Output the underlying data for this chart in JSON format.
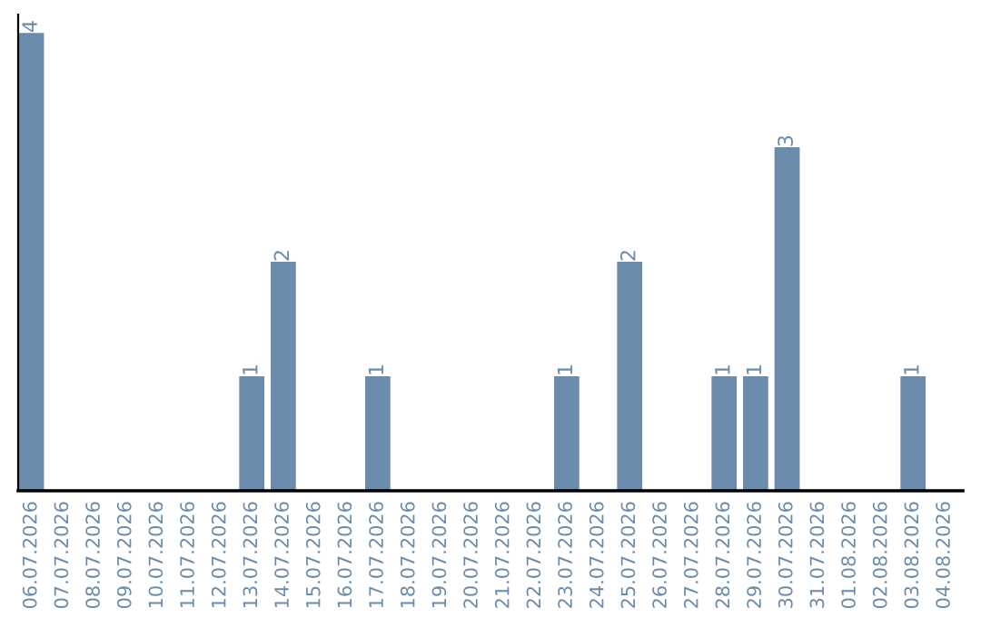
{
  "chart_data": {
    "type": "bar",
    "categories": [
      "06.07.2026",
      "07.07.2026",
      "08.07.2026",
      "09.07.2026",
      "10.07.2026",
      "11.07.2026",
      "12.07.2026",
      "13.07.2026",
      "14.07.2026",
      "15.07.2026",
      "16.07.2026",
      "17.07.2026",
      "18.07.2026",
      "19.07.2026",
      "20.07.2026",
      "21.07.2026",
      "22.07.2026",
      "23.07.2026",
      "24.07.2026",
      "25.07.2026",
      "26.07.2026",
      "27.07.2026",
      "28.07.2026",
      "29.07.2026",
      "30.07.2026",
      "31.07.2026",
      "01.08.2026",
      "02.08.2026",
      "03.08.2026",
      "04.08.2026"
    ],
    "values": [
      4,
      0,
      0,
      0,
      0,
      0,
      0,
      1,
      2,
      0,
      0,
      1,
      0,
      0,
      0,
      0,
      0,
      1,
      0,
      2,
      0,
      0,
      1,
      1,
      3,
      0,
      0,
      0,
      1,
      0
    ],
    "value_labels": [
      "4",
      null,
      null,
      null,
      null,
      null,
      null,
      "1",
      "2",
      null,
      null,
      "1",
      null,
      null,
      null,
      null,
      null,
      "1",
      null,
      "2",
      null,
      null,
      "1",
      "1",
      "3",
      null,
      null,
      null,
      "1",
      null
    ],
    "color": "#6a8bab",
    "tick_labels": "x",
    "grid": false,
    "legend": false
  }
}
